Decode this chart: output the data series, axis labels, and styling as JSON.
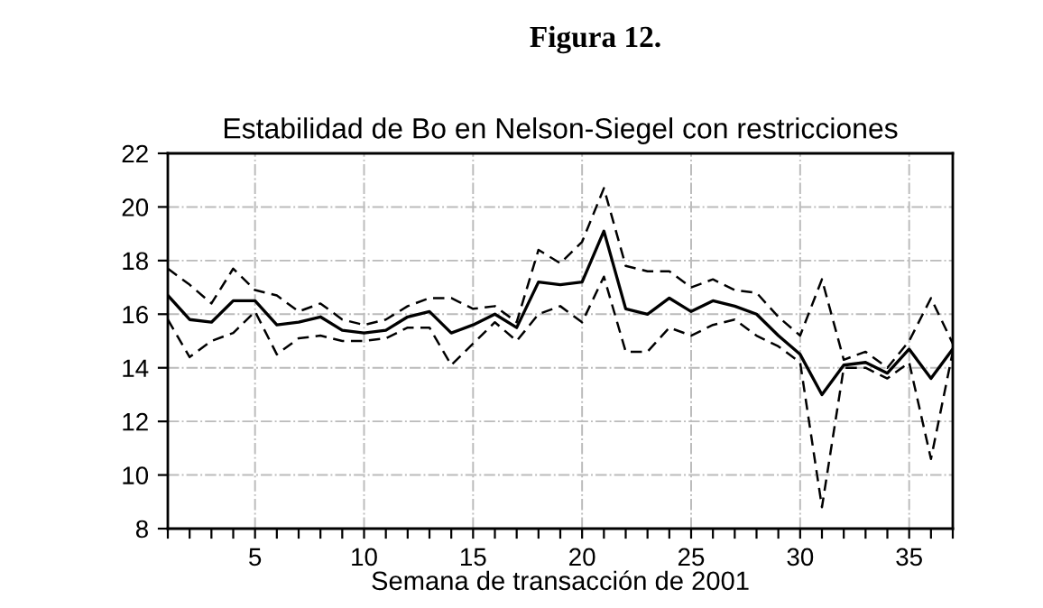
{
  "chart_data": {
    "type": "line",
    "title": "Figura 12.",
    "subtitle": "Estabilidad de Bo en Nelson-Siegel con restricciones",
    "xlabel": "Semana de transacción de 2001",
    "x": [
      1,
      2,
      3,
      4,
      5,
      6,
      7,
      8,
      9,
      10,
      11,
      12,
      13,
      14,
      15,
      16,
      17,
      18,
      19,
      20,
      21,
      22,
      23,
      24,
      25,
      26,
      27,
      28,
      29,
      30,
      31,
      32,
      33,
      34,
      35,
      36,
      37
    ],
    "series": [
      {
        "color": "#000000",
        "line_style": "solid",
        "values": [
          16.7,
          15.8,
          15.7,
          16.5,
          16.5,
          15.6,
          15.7,
          15.9,
          15.4,
          15.3,
          15.4,
          15.9,
          16.1,
          15.3,
          15.6,
          16.0,
          15.5,
          17.2,
          17.1,
          17.2,
          19.1,
          16.2,
          16.0,
          16.6,
          16.1,
          16.5,
          16.3,
          16.0,
          15.2,
          14.5,
          13.0,
          14.1,
          14.2,
          13.8,
          14.7,
          13.6,
          14.7
        ]
      },
      {
        "color": "#000000",
        "line_style": "dashed",
        "values": [
          17.7,
          17.1,
          16.4,
          17.7,
          16.9,
          16.7,
          16.1,
          16.4,
          15.8,
          15.6,
          15.8,
          16.3,
          16.6,
          16.6,
          16.2,
          16.3,
          15.7,
          18.4,
          17.9,
          18.7,
          20.7,
          17.8,
          17.6,
          17.6,
          17.0,
          17.3,
          16.9,
          16.8,
          15.9,
          15.2,
          17.3,
          14.3,
          14.6,
          14.0,
          15.0,
          16.6,
          14.9
        ]
      },
      {
        "color": "#000000",
        "line_style": "dashed",
        "values": [
          15.8,
          14.4,
          15.0,
          15.3,
          16.1,
          14.5,
          15.1,
          15.2,
          15.0,
          15.0,
          15.1,
          15.5,
          15.5,
          14.1,
          14.9,
          15.7,
          15.0,
          16.0,
          16.3,
          15.7,
          17.4,
          14.6,
          14.6,
          15.5,
          15.2,
          15.6,
          15.8,
          15.2,
          14.8,
          14.2,
          8.8,
          14.0,
          14.0,
          13.6,
          14.2,
          10.6,
          14.6
        ]
      }
    ],
    "xlim": [
      1,
      37
    ],
    "xticks": [
      {
        "value": 1,
        "label": null
      },
      {
        "value": 2,
        "label": null
      },
      {
        "value": 3,
        "label": null
      },
      {
        "value": 4,
        "label": null
      },
      5,
      {
        "value": 6,
        "label": null
      },
      {
        "value": 7,
        "label": null
      },
      {
        "value": 8,
        "label": null
      },
      {
        "value": 9,
        "label": null
      },
      10,
      {
        "value": 11,
        "label": null
      },
      {
        "value": 12,
        "label": null
      },
      {
        "value": 13,
        "label": null
      },
      {
        "value": 14,
        "label": null
      },
      15,
      {
        "value": 16,
        "label": null
      },
      {
        "value": 17,
        "label": null
      },
      {
        "value": 18,
        "label": null
      },
      {
        "value": 19,
        "label": null
      },
      20,
      {
        "value": 21,
        "label": null
      },
      {
        "value": 22,
        "label": null
      },
      {
        "value": 23,
        "label": null
      },
      {
        "value": 24,
        "label": null
      },
      25,
      {
        "value": 26,
        "label": null
      },
      {
        "value": 27,
        "label": null
      },
      {
        "value": 28,
        "label": null
      },
      {
        "value": 29,
        "label": null
      },
      30,
      {
        "value": 31,
        "label": null
      },
      {
        "value": 32,
        "label": null
      },
      {
        "value": 33,
        "label": null
      },
      {
        "value": 34,
        "label": null
      },
      35,
      {
        "value": 36,
        "label": null
      },
      {
        "value": 37,
        "label": null
      }
    ],
    "ylim": [
      8,
      22
    ],
    "yticks": [
      8,
      10,
      12,
      14,
      16,
      18,
      20,
      22
    ],
    "grid": true
  }
}
